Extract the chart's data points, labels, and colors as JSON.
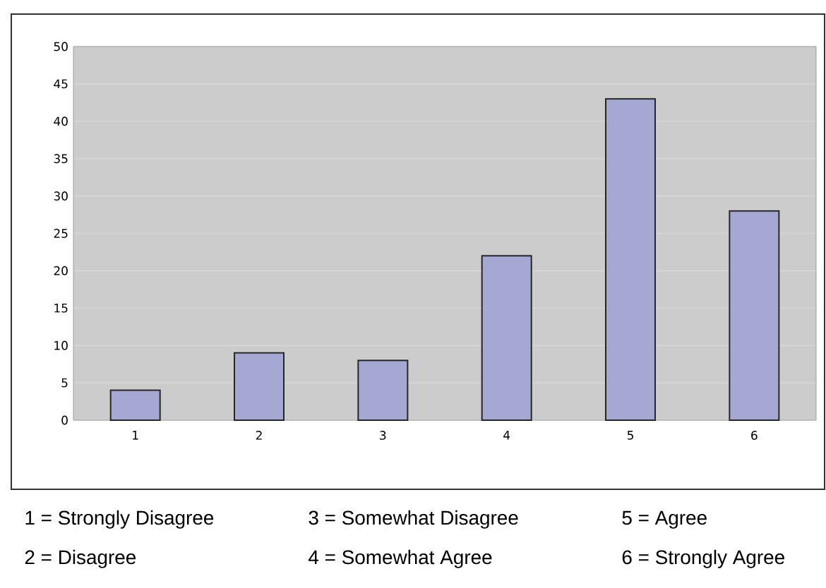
{
  "chart_data": {
    "type": "bar",
    "categories": [
      "1",
      "2",
      "3",
      "4",
      "5",
      "6"
    ],
    "values": [
      4,
      9,
      8,
      22,
      43,
      28
    ],
    "color": "#a6a8d4",
    "ylim": [
      0,
      50
    ],
    "yticks": [
      0,
      5,
      10,
      15,
      20,
      25,
      30,
      35,
      40,
      45,
      50
    ],
    "grid": "y",
    "annotations": [
      "1 = Strongly Disagree",
      "2 = Disagree",
      "3 = Somewhat Disagree",
      "4 = Somewhat Agree",
      "5 = Agree",
      "6 = Strongly Agree"
    ]
  }
}
